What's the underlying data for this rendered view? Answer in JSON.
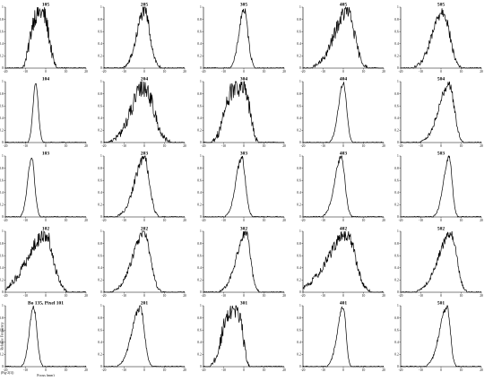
{
  "figure": {
    "ylabel": "Relative Frequency",
    "xlabel": "Focus (mm)",
    "corner_label": "(Fig-2(1))"
  },
  "chart_data": {
    "type": "line",
    "xlim": [
      -20,
      20
    ],
    "ylim": [
      0,
      1
    ],
    "x_ticks": [
      "-20",
      "-10",
      "0",
      "10",
      "20"
    ],
    "y_ticks": [
      "0",
      "0.2",
      "0.4",
      "0.6",
      "0.8",
      "1"
    ],
    "grid": false,
    "panels": [
      {
        "title": "105",
        "row": 0,
        "col": 0,
        "center": -3,
        "width": 4.5,
        "skew": 0,
        "noise": 0.18,
        "flat": true
      },
      {
        "title": "205",
        "row": 0,
        "col": 1,
        "center": 0,
        "width": 2.8,
        "skew": 0.3,
        "noise": 0.12,
        "flat": false
      },
      {
        "title": "305",
        "row": 0,
        "col": 2,
        "center": 0,
        "width": 2.0,
        "skew": 0.2,
        "noise": 0.08,
        "flat": false
      },
      {
        "title": "405",
        "row": 0,
        "col": 3,
        "center": 2,
        "width": 3.5,
        "skew": 0.8,
        "noise": 0.14,
        "flat": false
      },
      {
        "title": "505",
        "row": 0,
        "col": 4,
        "center": 1,
        "width": 3.2,
        "skew": 0.6,
        "noise": 0.12,
        "flat": false
      },
      {
        "title": "104",
        "row": 1,
        "col": 0,
        "center": -5,
        "width": 1.3,
        "skew": 0,
        "noise": 0.03,
        "flat": false
      },
      {
        "title": "204",
        "row": 1,
        "col": 1,
        "center": 0,
        "width": 4.5,
        "skew": 0.4,
        "noise": 0.17,
        "flat": false
      },
      {
        "title": "304",
        "row": 1,
        "col": 2,
        "center": -2,
        "width": 4.8,
        "skew": 0.5,
        "noise": 0.18,
        "flat": true
      },
      {
        "title": "404",
        "row": 1,
        "col": 3,
        "center": 0,
        "width": 1.6,
        "skew": 0.5,
        "noise": 0.04,
        "flat": false
      },
      {
        "title": "504",
        "row": 1,
        "col": 4,
        "center": 4,
        "width": 2.5,
        "skew": 1.0,
        "noise": 0.08,
        "flat": false
      },
      {
        "title": "103",
        "row": 2,
        "col": 0,
        "center": -7,
        "width": 1.5,
        "skew": 0.3,
        "noise": 0.04,
        "flat": false
      },
      {
        "title": "203",
        "row": 2,
        "col": 1,
        "center": 0,
        "width": 2.5,
        "skew": 0.9,
        "noise": 0.08,
        "flat": false
      },
      {
        "title": "303",
        "row": 2,
        "col": 2,
        "center": -1,
        "width": 1.8,
        "skew": 0.6,
        "noise": 0.05,
        "flat": false
      },
      {
        "title": "403",
        "row": 2,
        "col": 3,
        "center": -1,
        "width": 1.8,
        "skew": 0.8,
        "noise": 0.05,
        "flat": false
      },
      {
        "title": "503",
        "row": 2,
        "col": 4,
        "center": 4,
        "width": 1.5,
        "skew": 0.8,
        "noise": 0.04,
        "flat": false
      },
      {
        "title": "102",
        "row": 3,
        "col": 0,
        "center": 0,
        "width": 3.8,
        "skew": 1.3,
        "noise": 0.13,
        "flat": false
      },
      {
        "title": "202",
        "row": 3,
        "col": 1,
        "center": 0,
        "width": 3.0,
        "skew": 0.9,
        "noise": 0.08,
        "flat": false
      },
      {
        "title": "302",
        "row": 3,
        "col": 2,
        "center": 1,
        "width": 2.3,
        "skew": 1.0,
        "noise": 0.08,
        "flat": false
      },
      {
        "title": "402",
        "row": 3,
        "col": 3,
        "center": 2,
        "width": 4.0,
        "skew": 1.4,
        "noise": 0.12,
        "flat": false
      },
      {
        "title": "502",
        "row": 3,
        "col": 4,
        "center": 5,
        "width": 2.8,
        "skew": 1.2,
        "noise": 0.08,
        "flat": false
      },
      {
        "title": "Bo 135, Pixel 101",
        "row": 4,
        "col": 0,
        "center": -6,
        "width": 1.6,
        "skew": 0.3,
        "noise": 0.04,
        "flat": false
      },
      {
        "title": "201",
        "row": 4,
        "col": 1,
        "center": -2,
        "width": 2.0,
        "skew": 1.0,
        "noise": 0.06,
        "flat": false
      },
      {
        "title": "301",
        "row": 4,
        "col": 2,
        "center": -4,
        "width": 3.5,
        "skew": 0.9,
        "noise": 0.16,
        "flat": true
      },
      {
        "title": "401",
        "row": 4,
        "col": 3,
        "center": 0,
        "width": 1.3,
        "skew": 1.2,
        "noise": 0.04,
        "flat": false
      },
      {
        "title": "501",
        "row": 4,
        "col": 4,
        "center": 3,
        "width": 1.6,
        "skew": 1.3,
        "noise": 0.05,
        "flat": false
      }
    ]
  }
}
